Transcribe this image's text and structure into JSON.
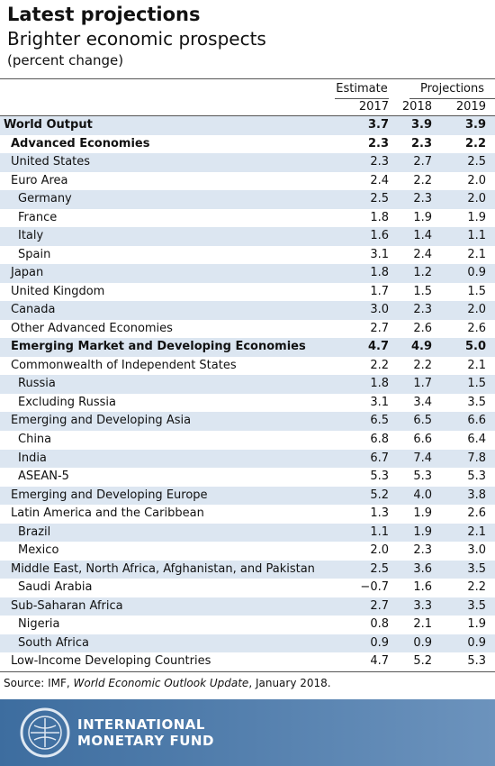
{
  "header": {
    "title": "Latest projections",
    "subtitle": "Brighter economic prospects",
    "unit": "(percent change)"
  },
  "table": {
    "group_headers": [
      "Estimate",
      "Projections"
    ],
    "columns": [
      "2017",
      "2018",
      "2019"
    ],
    "rows": [
      [
        "World Output",
        "3.7",
        "3.9",
        "3.9"
      ],
      [
        "Advanced Economies",
        "2.3",
        "2.3",
        "2.2"
      ],
      [
        "United States",
        "2.3",
        "2.7",
        "2.5"
      ],
      [
        "Euro Area",
        "2.4",
        "2.2",
        "2.0"
      ],
      [
        "Germany",
        "2.5",
        "2.3",
        "2.0"
      ],
      [
        "France",
        "1.8",
        "1.9",
        "1.9"
      ],
      [
        "Italy",
        "1.6",
        "1.4",
        "1.1"
      ],
      [
        "Spain",
        "3.1",
        "2.4",
        "2.1"
      ],
      [
        "Japan",
        "1.8",
        "1.2",
        "0.9"
      ],
      [
        "United Kingdom",
        "1.7",
        "1.5",
        "1.5"
      ],
      [
        "Canada",
        "3.0",
        "2.3",
        "2.0"
      ],
      [
        "Other Advanced Economies",
        "2.7",
        "2.6",
        "2.6"
      ],
      [
        "Emerging Market and Developing Economies",
        "4.7",
        "4.9",
        "5.0"
      ],
      [
        "Commonwealth of Independent States",
        "2.2",
        "2.2",
        "2.1"
      ],
      [
        "Russia",
        "1.8",
        "1.7",
        "1.5"
      ],
      [
        "Excluding Russia",
        "3.1",
        "3.4",
        "3.5"
      ],
      [
        "Emerging and Developing Asia",
        "6.5",
        "6.5",
        "6.6"
      ],
      [
        "China",
        "6.8",
        "6.6",
        "6.4"
      ],
      [
        "India",
        "6.7",
        "7.4",
        "7.8"
      ],
      [
        "ASEAN-5",
        "5.3",
        "5.3",
        "5.3"
      ],
      [
        "Emerging and Developing Europe",
        "5.2",
        "4.0",
        "3.8"
      ],
      [
        "Latin America and the Caribbean",
        "1.3",
        "1.9",
        "2.6"
      ],
      [
        "Brazil",
        "1.1",
        "1.9",
        "2.1"
      ],
      [
        "Mexico",
        "2.0",
        "2.3",
        "3.0"
      ],
      [
        "Middle East, North Africa, Afghanistan, and Pakistan",
        "2.5",
        "3.6",
        "3.5"
      ],
      [
        "Saudi Arabia",
        "−0.7",
        "1.6",
        "2.2"
      ],
      [
        "Sub-Saharan Africa",
        "2.7",
        "3.3",
        "3.5"
      ],
      [
        "Nigeria",
        "0.8",
        "2.1",
        "1.9"
      ],
      [
        "South Africa",
        "0.9",
        "0.9",
        "0.9"
      ],
      [
        "Low-Income Developing Countries",
        "4.7",
        "5.2",
        "5.3"
      ]
    ]
  },
  "source": {
    "prefix": "Source: IMF, ",
    "publication": "World Economic Outlook Update",
    "suffix": ", January 2018."
  },
  "footer": {
    "line1": "INTERNATIONAL",
    "line2": "MONETARY FUND"
  }
}
